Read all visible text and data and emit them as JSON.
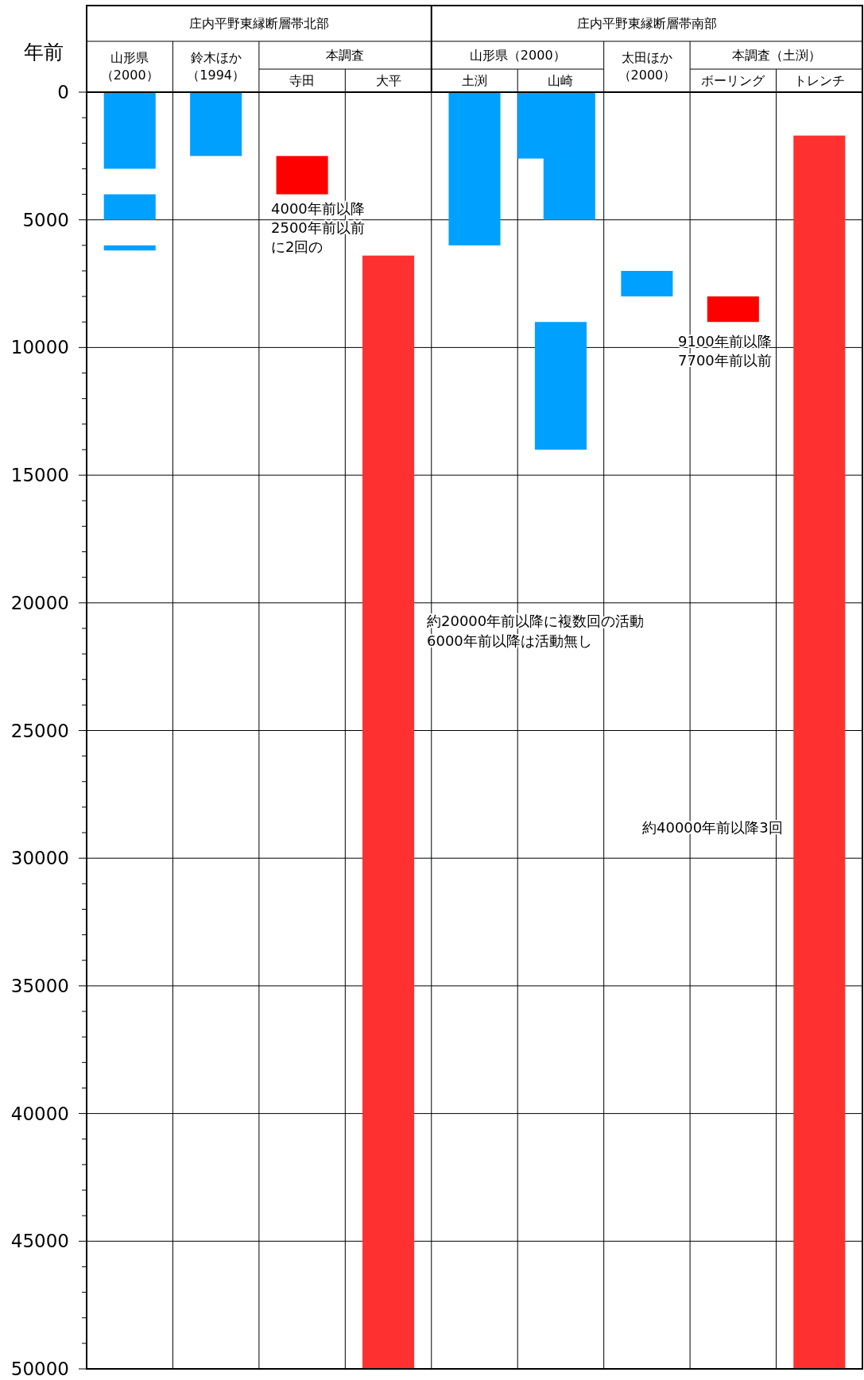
{
  "chart_data": {
    "type": "bar",
    "ylabel": "年前",
    "categories": [
      "山形県（2000）",
      "鈴木ほか（1994）",
      "寺田",
      "大平",
      "土渕",
      "山崎",
      "太田ほか（2000）",
      "ボーリング",
      "トレンチ"
    ],
    "series": [
      {
        "colors": [
          "#00a0ff",
          "#00a0ff",
          "#ff0000",
          "#ff3030",
          "#00a0ff",
          "#00a0ff",
          "#00a0ff",
          "#ff0000",
          "#ff3030"
        ],
        "base": [
          0,
          0,
          2500,
          6400,
          0,
          0,
          7000,
          8000,
          1700
        ],
        "values": [
          3000,
          2500,
          1500,
          43600,
          6000,
          2600,
          1000,
          1000,
          48300
        ]
      },
      {
        "colors": [
          "#00a0ff",
          null,
          null,
          null,
          null,
          "#00a0ff",
          null,
          null,
          null
        ],
        "base": [
          4000,
          null,
          null,
          null,
          null,
          9000,
          null,
          null,
          null
        ],
        "values": [
          1000,
          null,
          null,
          null,
          null,
          5000,
          null,
          null,
          null
        ]
      },
      {
        "colors": [
          "#00a0ff",
          null,
          null,
          null,
          null,
          "#00a0ff",
          null,
          null,
          null
        ],
        "base": [
          6000,
          null,
          null,
          null,
          null,
          0,
          null,
          null,
          null
        ],
        "values": [
          200,
          null,
          null,
          null,
          null,
          5000,
          null,
          null,
          null
        ]
      }
    ],
    "ylim": [
      50000,
      0
    ],
    "yticks": [
      0,
      {
        "value": 1000,
        "label": null
      },
      {
        "value": 2000,
        "label": null
      },
      {
        "value": 3000,
        "label": null
      },
      {
        "value": 4000,
        "label": null
      },
      5000,
      {
        "value": 6000,
        "label": null
      },
      {
        "value": 7000,
        "label": null
      },
      {
        "value": 8000,
        "label": null
      },
      {
        "value": 9000,
        "label": null
      },
      10000,
      {
        "value": 11000,
        "label": null
      },
      {
        "value": 12000,
        "label": null
      },
      {
        "value": 13000,
        "label": null
      },
      {
        "value": 14000,
        "label": null
      },
      15000,
      {
        "value": 16000,
        "label": null
      },
      {
        "value": 17000,
        "label": null
      },
      {
        "value": 18000,
        "label": null
      },
      {
        "value": 19000,
        "label": null
      },
      20000,
      {
        "value": 21000,
        "label": null
      },
      {
        "value": 22000,
        "label": null
      },
      {
        "value": 23000,
        "label": null
      },
      {
        "value": 24000,
        "label": null
      },
      25000,
      {
        "value": 26000,
        "label": null
      },
      {
        "value": 27000,
        "label": null
      },
      {
        "value": 28000,
        "label": null
      },
      {
        "value": 29000,
        "label": null
      },
      30000,
      {
        "value": 31000,
        "label": null
      },
      {
        "value": 32000,
        "label": null
      },
      {
        "value": 33000,
        "label": null
      },
      {
        "value": 34000,
        "label": null
      },
      35000,
      {
        "value": 36000,
        "label": null
      },
      {
        "value": 37000,
        "label": null
      },
      {
        "value": 38000,
        "label": null
      },
      {
        "value": 39000,
        "label": null
      },
      40000,
      {
        "value": 41000,
        "label": null
      },
      {
        "value": 42000,
        "label": null
      },
      {
        "value": 43000,
        "label": null
      },
      {
        "value": 44000,
        "label": null
      },
      45000,
      {
        "value": 46000,
        "label": null
      },
      {
        "value": 47000,
        "label": null
      },
      {
        "value": 48000,
        "label": null
      },
      {
        "value": 49000,
        "label": null
      },
      50000
    ],
    "grid": true,
    "annotations": [
      "庄内平野東縁断層帯北部",
      "庄内平野東縁断層帯南部",
      "本調査",
      "山形県（2000）",
      "本調査（土渕）",
      "4000年前以降",
      "2500年前以前",
      "に2回の",
      "約20000年前以降に複数回の活動",
      "6000年前以降は活動無し",
      "9100年前以降",
      "7700年前以前",
      "約40000年前以降3回"
    ]
  }
}
